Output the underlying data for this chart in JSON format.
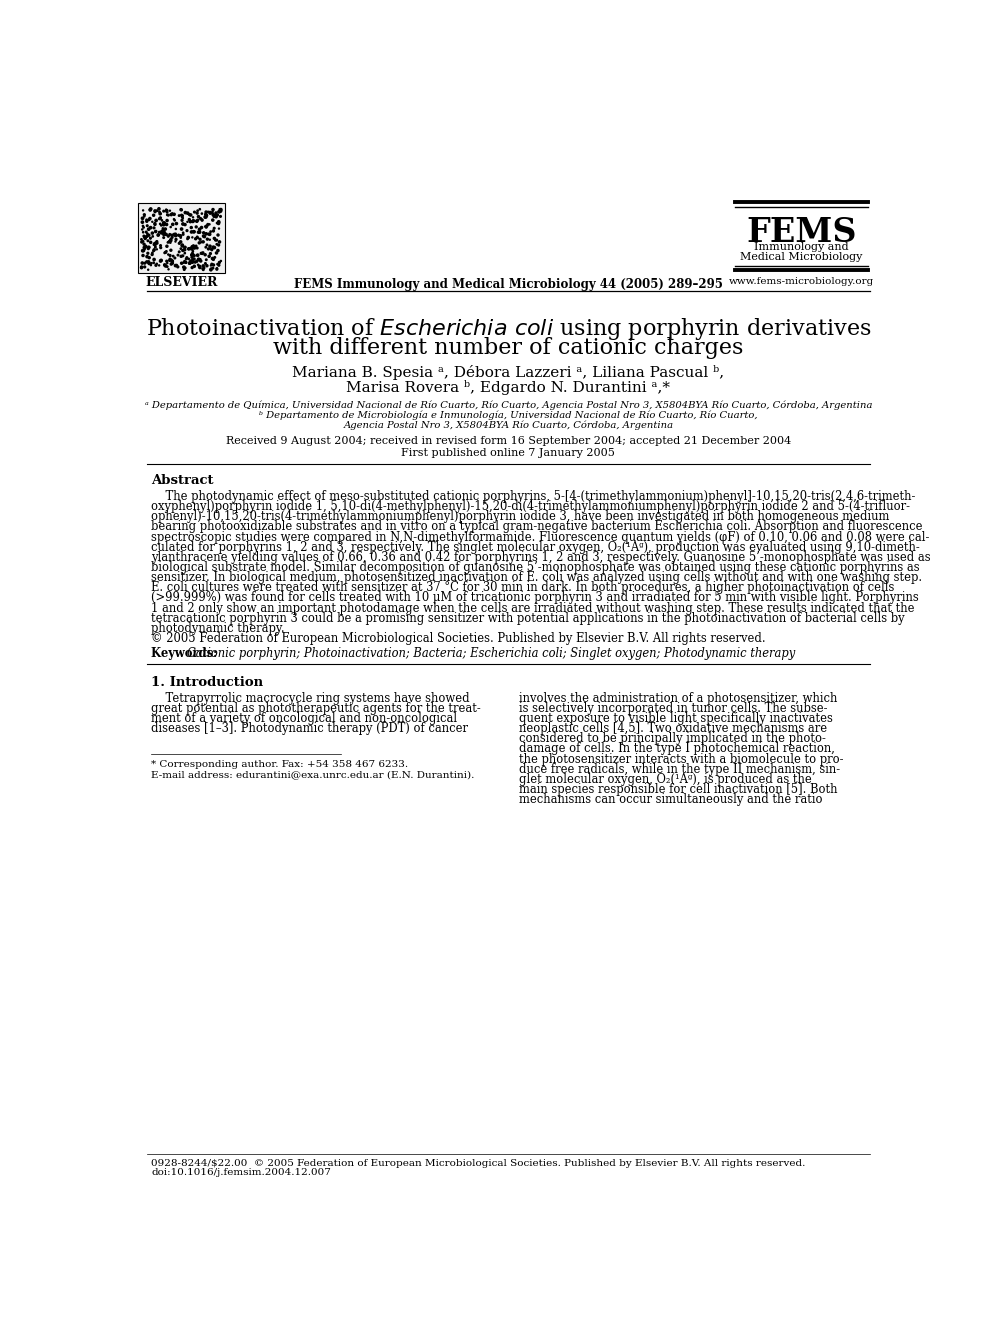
{
  "bg_color": "#ffffff",
  "title_line1": "Photoinactivation of $\\it{Escherichia\\ coli}$ using porphyrin derivatives",
  "title_line2": "with different number of cationic charges",
  "authors": "Mariana B. Spesia ᵃ, Débora Lazzeri ᵃ, Liliana Pascual ᵇ,",
  "authors2": "Marisa Rovera ᵇ, Edgardo N. Durantini ᵃ,*",
  "affil1": "ᵃ Departamento de Química, Universidad Nacional de Río Cuarto, Río Cuarto, Agencia Postal Nro 3, X5804BYA Río Cuarto, Córdoba, Argentina",
  "affil2": "ᵇ Departamento de Microbiología e Inmunología, Universidad Nacional de Río Cuarto, Río Cuarto,",
  "affil3": "Agencia Postal Nro 3, X5804BYA Río Cuarto, Córdoba, Argentina",
  "received": "Received 9 August 2004; received in revised form 16 September 2004; accepted 21 December 2004",
  "published": "First published online 7 January 2005",
  "journal_header": "FEMS Immunology and Medical Microbiology 44 (2005) 289–295",
  "fems_title": "FEMS",
  "fems_sub1": "Immunology and",
  "fems_sub2": "Medical Microbiology",
  "website": "www.fems-microbiology.org",
  "elsevier": "ELSEVIER",
  "abstract_title": "Abstract",
  "abstract_lines": [
    "    The photodynamic effect of meso-substituted cationic porphyrins, 5-[4-(trimethylammonium)phenyl]-10,15,20-tris(2,4,6-trimeth-",
    "oxyphenyl)porphyrin iodide 1, 5,10-di(4-methylphenyl)-15,20-di(4-trimethylammoniumphenyl)porphyrin iodide 2 and 5-(4-trifluor-",
    "ophenyl)-10,15,20-tris(4-trimethylammoniumphenyl)porphyrin iodide 3, have been investigated in both homogeneous medium",
    "bearing photooxidizable substrates and in vitro on a typical gram-negative bacterium Escherichia coli. Absorption and fluorescence",
    "spectroscopic studies were compared in N,N-dimethylformamide. Fluorescence quantum yields (φF) of 0.10, 0.06 and 0.08 were cal-",
    "culated for porphyrins 1, 2 and 3, respectively. The singlet molecular oxygen, O₂(¹Aᵍ), production was evaluated using 9,10-dimeth-",
    "ylanthracene yielding values of 0.66, 0.36 and 0.42 for porphyrins 1, 2 and 3, respectively. Guanosine 5’-monophosphate was used as",
    "biological substrate model. Similar decomposition of guanosine 5’-monophosphate was obtained using these cationic porphyrins as",
    "sensitizer. In biological medium, photosensitized inactivation of E. coli was analyzed using cells without and with one washing step.",
    "E. coli cultures were treated with sensitizer at 37 °C for 30 min in dark. In both procedures, a higher photoinactivation of cells",
    "(>99.999%) was found for cells treated with 10 μM of tricationic porphyrin 3 and irradiated for 5 min with visible light. Porphyrins",
    "1 and 2 only show an important photodamage when the cells are irradiated without washing step. These results indicated that the",
    "tetracationic porphyrin 3 could be a promising sensitizer with potential applications in the photoinactivation of bacterial cells by",
    "photodynamic therapy.",
    "© 2005 Federation of European Microbiological Societies. Published by Elsevier B.V. All rights reserved."
  ],
  "keywords_label": "Keywords: ",
  "keywords_text": "Cationic porphyrin; Photoinactivation; Bacteria; Escherichia coli; Singlet oxygen; Photodynamic therapy",
  "section1_title": "1. Introduction",
  "intro_col1_lines": [
    "    Tetrapyrrolic macrocycle ring systems have showed",
    "great potential as phototherapeutic agents for the treat-",
    "ment of a variety of oncological and non-oncological",
    "diseases [1–3]. Photodynamic therapy (PDT) of cancer"
  ],
  "intro_col2_lines": [
    "involves the administration of a photosensitizer, which",
    "is selectively incorporated in tumor cells. The subse-",
    "quent exposure to visible light specifically inactivates",
    "neoplastic cells [4,5]. Two oxidative mechanisms are",
    "considered to be principally implicated in the photo-",
    "damage of cells. In the type I photochemical reaction,",
    "the photosensitizer interacts with a biomolecule to pro-",
    "duce free radicals, while in the type II mechanism, sin-",
    "glet molecular oxygen, O₂(¹Aᵍ), is produced as the",
    "main species responsible for cell inactivation [5]. Both",
    "mechanisms can occur simultaneously and the ratio"
  ],
  "footnote_star": "* Corresponding author. Fax: +54 358 467 6233.",
  "footnote_email": "E-mail address: edurantini@exa.unrc.edu.ar (E.N. Durantini).",
  "footer_issn": "0928-8244/$22.00  © 2005 Federation of European Microbiological Societies. Published by Elsevier B.V. All rights reserved.",
  "footer_doi": "doi:10.1016/j.femsim.2004.12.007"
}
